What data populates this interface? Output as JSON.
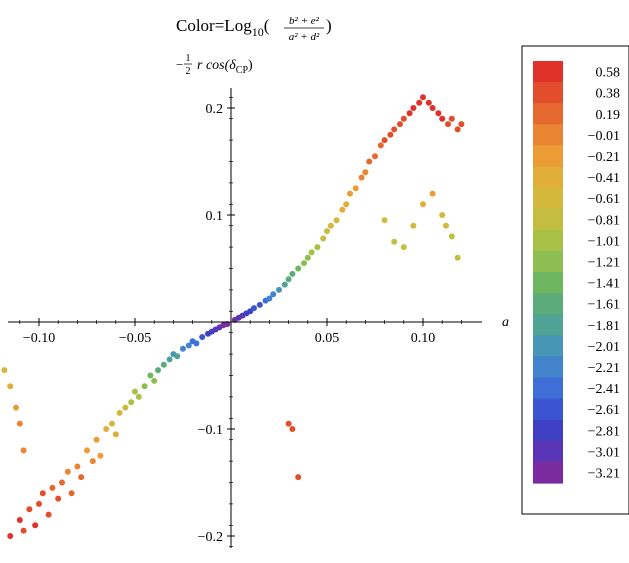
{
  "chart_data": {
    "type": "scatter",
    "title": {
      "prefix": "Color=Log",
      "subscript": "10",
      "numerator": "b² + e²",
      "denominator": "a² + d²"
    },
    "ylabel": {
      "sign": "−",
      "frac_num": "1",
      "frac_den": "2",
      "body": "r cos(δ",
      "subscript": "CP",
      "close": ")"
    },
    "xlabel": "a",
    "xlim": [
      -0.12,
      0.13
    ],
    "ylim": [
      -0.22,
      0.22
    ],
    "x_ticks": [
      -0.1,
      -0.05,
      0.05,
      0.1
    ],
    "x_tick_labels": [
      "−0.10",
      "−0.05",
      "0.05",
      "0.10"
    ],
    "y_ticks": [
      0.2,
      0.1,
      -0.1,
      -0.2
    ],
    "y_tick_labels": [
      "0.2",
      "0.1",
      "−0.1",
      "−0.2"
    ],
    "grid": false,
    "legend_placement": "right",
    "color_scale": {
      "labels": [
        "0.58",
        "0.38",
        "0.19",
        "−0.01",
        "−0.21",
        "−0.41",
        "−0.61",
        "−0.81",
        "−1.01",
        "−1.21",
        "−1.41",
        "−1.61",
        "−1.81",
        "−2.01",
        "−2.21",
        "−2.41",
        "−2.61",
        "−2.81",
        "−3.01",
        "−3.21"
      ],
      "values": [
        0.58,
        0.38,
        0.19,
        -0.01,
        -0.21,
        -0.41,
        -0.61,
        -0.81,
        -1.01,
        -1.21,
        -1.41,
        -1.61,
        -1.81,
        -2.01,
        -2.21,
        -2.41,
        -2.61,
        -2.81,
        -3.01,
        -3.21
      ],
      "colors": [
        "#e03229",
        "#e24e2c",
        "#e5692f",
        "#e98432",
        "#eb9c35",
        "#e2ae3a",
        "#d3b83d",
        "#c4bd40",
        "#a9c046",
        "#8ebd52",
        "#6fb661",
        "#5cac7a",
        "#4fa394",
        "#4796b5",
        "#4283cc",
        "#3f6ed8",
        "#3b55d1",
        "#4040c4",
        "#5a36b6",
        "#7a2c9f"
      ]
    },
    "series": [
      {
        "description_points": "x, y, color value (log10)",
        "points": [
          [
            -0.115,
            -0.2,
            0.55
          ],
          [
            -0.11,
            -0.185,
            0.5
          ],
          [
            -0.108,
            -0.195,
            0.45
          ],
          [
            -0.105,
            -0.175,
            0.4
          ],
          [
            -0.102,
            -0.19,
            0.52
          ],
          [
            -0.1,
            -0.17,
            0.35
          ],
          [
            -0.098,
            -0.16,
            0.3
          ],
          [
            -0.095,
            -0.18,
            0.45
          ],
          [
            -0.093,
            -0.155,
            0.2
          ],
          [
            -0.09,
            -0.165,
            0.3
          ],
          [
            -0.088,
            -0.15,
            0.15
          ],
          [
            -0.085,
            -0.14,
            0.05
          ],
          [
            -0.083,
            -0.16,
            0.25
          ],
          [
            -0.08,
            -0.135,
            -0.05
          ],
          [
            -0.078,
            -0.145,
            0.1
          ],
          [
            -0.075,
            -0.12,
            -0.2
          ],
          [
            -0.072,
            -0.13,
            -0.1
          ],
          [
            -0.07,
            -0.11,
            -0.3
          ],
          [
            -0.068,
            -0.125,
            -0.15
          ],
          [
            -0.065,
            -0.1,
            -0.4
          ],
          [
            -0.062,
            -0.095,
            -0.55
          ],
          [
            -0.06,
            -0.105,
            -0.45
          ],
          [
            -0.058,
            -0.085,
            -0.7
          ],
          [
            -0.055,
            -0.08,
            -0.8
          ],
          [
            -0.052,
            -0.075,
            -0.95
          ],
          [
            -0.05,
            -0.065,
            -1.1
          ],
          [
            -0.048,
            -0.07,
            -1.0
          ],
          [
            -0.045,
            -0.06,
            -1.25
          ],
          [
            -0.042,
            -0.05,
            -1.4
          ],
          [
            -0.04,
            -0.055,
            -1.3
          ],
          [
            -0.038,
            -0.045,
            -1.55
          ],
          [
            -0.035,
            -0.04,
            -1.7
          ],
          [
            -0.032,
            -0.035,
            -1.85
          ],
          [
            -0.03,
            -0.03,
            -2.0
          ],
          [
            -0.028,
            -0.032,
            -1.9
          ],
          [
            -0.025,
            -0.025,
            -2.15
          ],
          [
            -0.022,
            -0.022,
            -2.3
          ],
          [
            -0.02,
            -0.018,
            -2.45
          ],
          [
            -0.018,
            -0.02,
            -2.35
          ],
          [
            -0.015,
            -0.014,
            -2.6
          ],
          [
            -0.012,
            -0.011,
            -2.75
          ],
          [
            -0.01,
            -0.009,
            -2.85
          ],
          [
            -0.008,
            -0.007,
            -2.95
          ],
          [
            -0.006,
            -0.005,
            -3.05
          ],
          [
            -0.004,
            -0.003,
            -3.15
          ],
          [
            -0.002,
            -0.002,
            -3.2
          ],
          [
            0.002,
            0.002,
            -3.2
          ],
          [
            0.004,
            0.004,
            -3.1
          ],
          [
            0.006,
            0.006,
            -3.0
          ],
          [
            0.008,
            0.008,
            -2.9
          ],
          [
            0.01,
            0.01,
            -2.8
          ],
          [
            0.012,
            0.013,
            -2.7
          ],
          [
            0.015,
            0.016,
            -2.55
          ],
          [
            0.018,
            0.02,
            -2.4
          ],
          [
            0.02,
            0.022,
            -2.3
          ],
          [
            0.022,
            0.026,
            -2.15
          ],
          [
            0.025,
            0.03,
            -2.0
          ],
          [
            0.028,
            0.035,
            -1.85
          ],
          [
            0.03,
            0.04,
            -1.7
          ],
          [
            0.032,
            0.045,
            -1.6
          ],
          [
            0.035,
            0.05,
            -1.45
          ],
          [
            0.038,
            0.055,
            -1.3
          ],
          [
            0.04,
            0.06,
            -1.2
          ],
          [
            0.042,
            0.065,
            -1.1
          ],
          [
            0.045,
            0.07,
            -1.0
          ],
          [
            0.048,
            0.078,
            -0.85
          ],
          [
            0.05,
            0.085,
            -0.75
          ],
          [
            0.052,
            0.09,
            -0.65
          ],
          [
            0.055,
            0.095,
            -0.55
          ],
          [
            0.058,
            0.105,
            -0.45
          ],
          [
            0.06,
            0.11,
            -0.35
          ],
          [
            0.062,
            0.12,
            -0.25
          ],
          [
            0.065,
            0.125,
            -0.15
          ],
          [
            0.068,
            0.135,
            -0.05
          ],
          [
            0.07,
            0.14,
            0.0
          ],
          [
            0.072,
            0.15,
            0.1
          ],
          [
            0.075,
            0.155,
            0.15
          ],
          [
            0.078,
            0.165,
            0.25
          ],
          [
            0.08,
            0.17,
            0.3
          ],
          [
            0.083,
            0.175,
            0.35
          ],
          [
            0.085,
            0.18,
            0.4
          ],
          [
            0.088,
            0.185,
            0.42
          ],
          [
            0.09,
            0.19,
            0.45
          ],
          [
            0.093,
            0.195,
            0.48
          ],
          [
            0.095,
            0.2,
            0.5
          ],
          [
            0.098,
            0.205,
            0.52
          ],
          [
            0.1,
            0.21,
            0.55
          ],
          [
            0.103,
            0.205,
            0.55
          ],
          [
            0.105,
            0.2,
            0.53
          ],
          [
            0.108,
            0.195,
            0.5
          ],
          [
            0.11,
            0.19,
            0.48
          ],
          [
            0.113,
            0.185,
            0.45
          ],
          [
            0.115,
            0.19,
            0.47
          ],
          [
            0.118,
            0.18,
            0.42
          ],
          [
            0.12,
            0.185,
            0.44
          ],
          [
            0.105,
            0.12,
            -0.3
          ],
          [
            0.11,
            0.1,
            -0.55
          ],
          [
            0.115,
            0.08,
            -0.75
          ],
          [
            0.118,
            0.06,
            -0.85
          ],
          [
            0.112,
            0.09,
            -0.65
          ],
          [
            0.1,
            0.11,
            -0.45
          ],
          [
            0.095,
            0.09,
            -0.7
          ],
          [
            0.09,
            0.07,
            -0.9
          ],
          [
            0.085,
            0.075,
            -0.85
          ],
          [
            0.08,
            0.095,
            -0.6
          ],
          [
            0.03,
            -0.095,
            0.3
          ],
          [
            0.032,
            -0.1,
            0.35
          ],
          [
            0.035,
            -0.145,
            0.45
          ],
          [
            -0.118,
            -0.045,
            -0.65
          ],
          [
            -0.115,
            -0.06,
            -0.4
          ],
          [
            -0.112,
            -0.08,
            -0.2
          ],
          [
            -0.11,
            -0.095,
            -0.1
          ],
          [
            -0.108,
            -0.12,
            0.05
          ]
        ]
      }
    ]
  }
}
